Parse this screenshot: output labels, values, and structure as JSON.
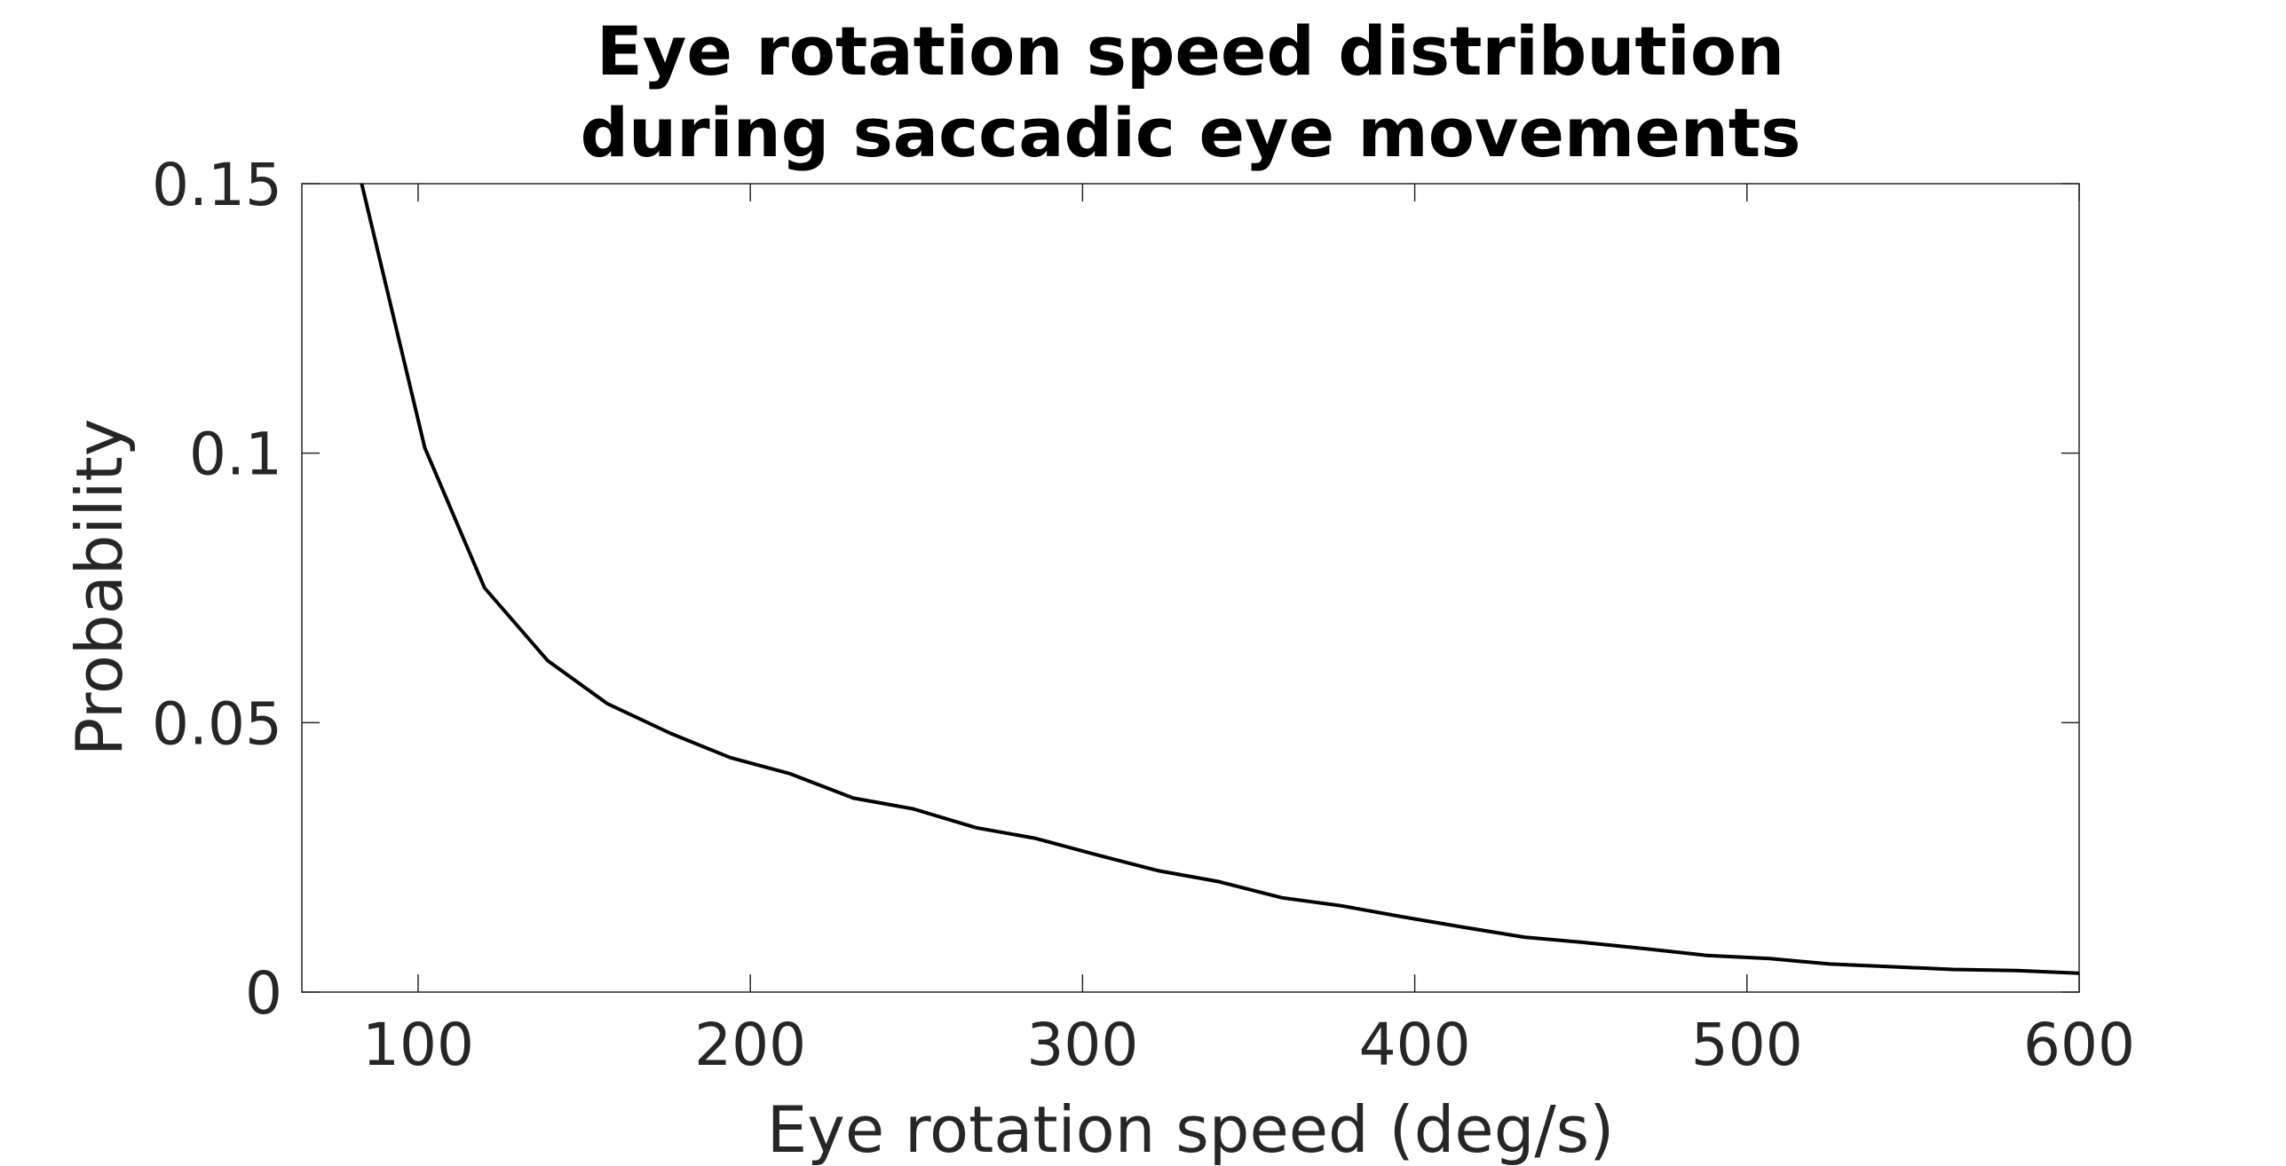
{
  "chart_data": {
    "type": "line",
    "title_lines": [
      "Eye rotation speed distribution",
      "during saccadic eye movements"
    ],
    "xlabel": "Eye rotation speed (deg/s)",
    "ylabel": "Probability",
    "xlim": [
      65,
      600
    ],
    "ylim": [
      0,
      0.15
    ],
    "x_ticks": [
      100,
      200,
      300,
      400,
      500,
      600
    ],
    "x_tick_labels": [
      "100",
      "200",
      "300",
      "400",
      "500",
      "600"
    ],
    "y_ticks": [
      0,
      0.05,
      0.1,
      0.15
    ],
    "y_tick_labels": [
      "0",
      "0.05",
      "0.1",
      "0.15"
    ],
    "grid": false,
    "line_color": "#000000",
    "axis_color": "#262626",
    "series": [
      {
        "x": [
          83,
          102,
          120,
          139,
          157,
          176,
          194,
          212,
          231,
          249,
          268,
          286,
          304,
          323,
          341,
          360,
          378,
          396,
          415,
          433,
          451,
          470,
          488,
          507,
          525,
          544,
          562,
          581,
          600
        ],
        "y": [
          0.15,
          0.101,
          0.075,
          0.0615,
          0.0535,
          0.048,
          0.0435,
          0.0405,
          0.036,
          0.034,
          0.0305,
          0.0285,
          0.0255,
          0.0225,
          0.0205,
          0.0175,
          0.016,
          0.014,
          0.012,
          0.0102,
          0.0092,
          0.008,
          0.0068,
          0.0062,
          0.0052,
          0.0047,
          0.0042,
          0.004,
          0.0035
        ]
      }
    ]
  }
}
